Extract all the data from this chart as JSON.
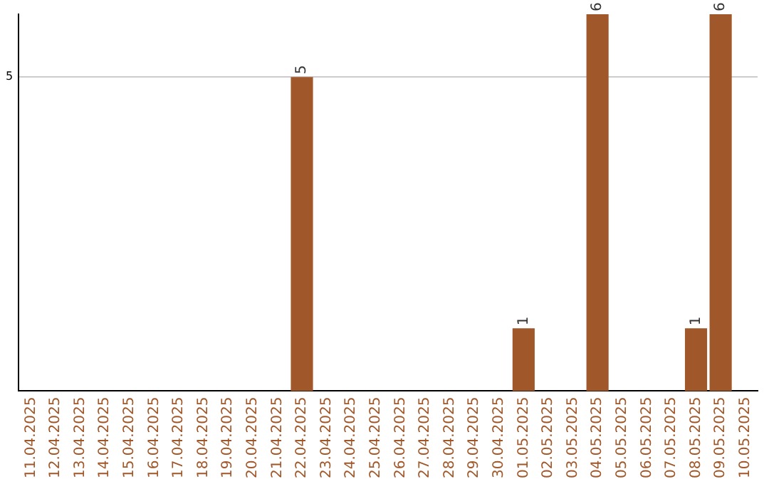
{
  "chart_data": {
    "type": "bar",
    "categories": [
      "11.04.2025",
      "12.04.2025",
      "13.04.2025",
      "14.04.2025",
      "15.04.2025",
      "16.04.2025",
      "17.04.2025",
      "18.04.2025",
      "19.04.2025",
      "20.04.2025",
      "21.04.2025",
      "22.04.2025",
      "23.04.2025",
      "24.04.2025",
      "25.04.2025",
      "26.04.2025",
      "27.04.2025",
      "28.04.2025",
      "29.04.2025",
      "30.04.2025",
      "01.05.2025",
      "02.05.2025",
      "03.05.2025",
      "04.05.2025",
      "05.05.2025",
      "06.05.2025",
      "07.05.2025",
      "08.05.2025",
      "09.05.2025",
      "10.05.2025"
    ],
    "values": [
      0,
      0,
      0,
      0,
      0,
      0,
      0,
      0,
      0,
      0,
      0,
      5,
      0,
      0,
      0,
      0,
      0,
      0,
      0,
      0,
      1,
      0,
      0,
      6,
      0,
      0,
      0,
      1,
      6,
      0
    ],
    "value_labels": [
      null,
      null,
      null,
      null,
      null,
      null,
      null,
      null,
      null,
      null,
      null,
      "5",
      null,
      null,
      null,
      null,
      null,
      null,
      null,
      null,
      "1",
      null,
      null,
      "6",
      null,
      null,
      null,
      "1",
      "6",
      null
    ],
    "color": "#a0582a",
    "ylim": [
      0,
      6
    ],
    "yticks": [
      5
    ],
    "grid": "y",
    "legend": false
  }
}
